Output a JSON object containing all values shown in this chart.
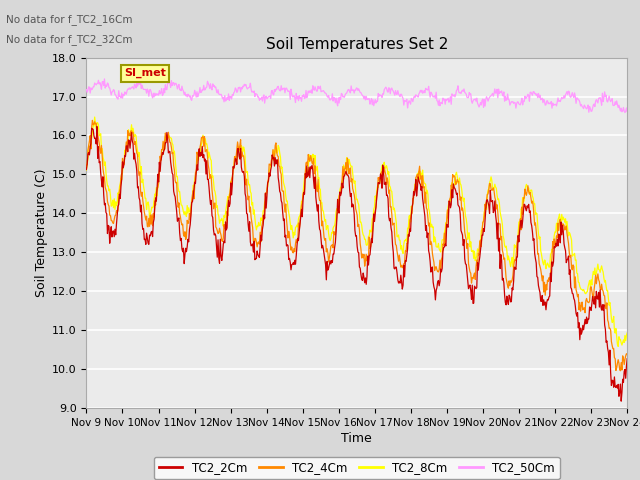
{
  "title": "Soil Temperatures Set 2",
  "xlabel": "Time",
  "ylabel": "Soil Temperature (C)",
  "ylim": [
    9.0,
    18.0
  ],
  "yticks": [
    9.0,
    10.0,
    11.0,
    12.0,
    13.0,
    14.0,
    15.0,
    16.0,
    17.0,
    18.0
  ],
  "xtick_labels": [
    "Nov 9",
    "Nov 10",
    "Nov 11",
    "Nov 12",
    "Nov 13",
    "Nov 14",
    "Nov 15",
    "Nov 16",
    "Nov 17",
    "Nov 18",
    "Nov 19",
    "Nov 20",
    "Nov 21",
    "Nov 22",
    "Nov 23",
    "Nov 24"
  ],
  "annotations": [
    "No data for f_TC2_16Cm",
    "No data for f_TC2_32Cm"
  ],
  "legend_label": "SI_met",
  "legend_series": [
    "TC2_2Cm",
    "TC2_4Cm",
    "TC2_8Cm",
    "TC2_50Cm"
  ],
  "line_colors": {
    "TC2_2Cm": "#cc0000",
    "TC2_4Cm": "#ff8800",
    "TC2_8Cm": "#ffff00",
    "TC2_50Cm": "#ff99ff"
  },
  "background_color": "#d8d8d8",
  "plot_bg_color": "#ebebeb",
  "grid_color": "#ffffff",
  "si_met_bg": "#ffff99",
  "si_met_border": "#999900",
  "si_met_text_color": "#cc0000"
}
